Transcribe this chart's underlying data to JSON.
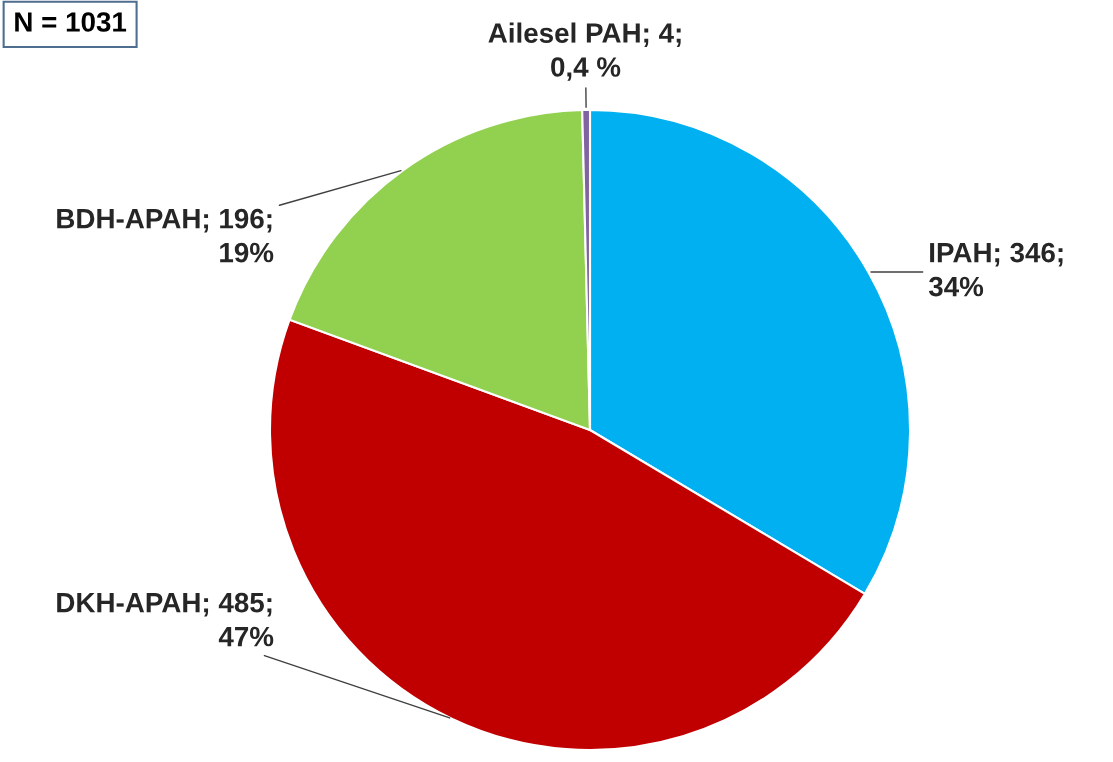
{
  "chart_data": {
    "type": "pie",
    "categories": [
      "IPAH",
      "DKH-APAH",
      "BDH-APAH",
      "Ailesel PAH"
    ],
    "values": [
      346,
      485,
      196,
      4
    ],
    "colors": [
      "#00b0f0",
      "#c00000",
      "#92d050",
      "#8064a2"
    ],
    "value_labels": [
      "346; 34%",
      "485; 47%",
      "196; 19%",
      "4; 0,4 %"
    ],
    "annotations": [
      "N = 1031"
    ],
    "legend": false
  }
}
